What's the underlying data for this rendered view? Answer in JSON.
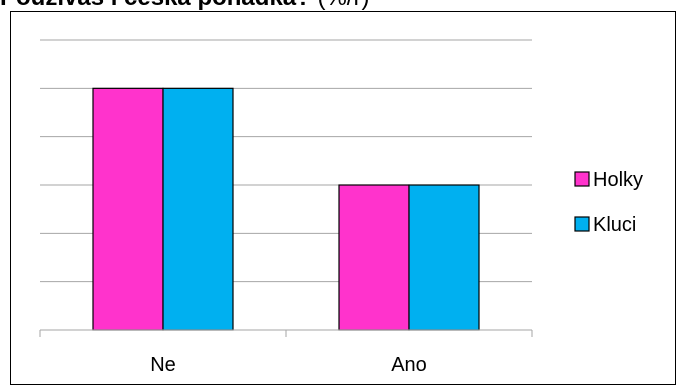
{
  "title_bold": "Používáš i česká pohádka?",
  "title_rest": " (%/ř)",
  "chart_data": {
    "type": "bar",
    "categories": [
      "Ne",
      "Ano"
    ],
    "series": [
      {
        "name": "Holky",
        "values": [
          5,
          3
        ],
        "color": "#ff33cc"
      },
      {
        "name": "Kluci",
        "values": [
          5,
          3
        ],
        "color": "#00b0f0"
      }
    ],
    "ylim": [
      0,
      6
    ],
    "grid": true,
    "legend": "right",
    "xlabel": "",
    "ylabel": ""
  }
}
